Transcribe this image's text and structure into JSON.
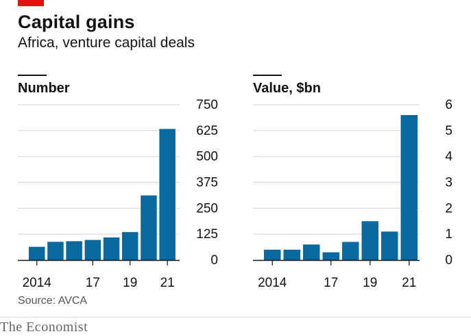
{
  "header": {
    "title": "Capital gains",
    "subtitle": "Africa, venture capital deals"
  },
  "footer": {
    "source": "Source: AVCA",
    "brand": "The Economist"
  },
  "colors": {
    "bar": "#0a6aa0",
    "grid": "#d9d9d9",
    "accent": "#e3120b"
  },
  "chart_data": [
    {
      "type": "bar",
      "title": "Number",
      "x": [
        2014,
        2015,
        2016,
        2017,
        2018,
        2019,
        2020,
        2021
      ],
      "x_tick_labels": [
        "2014",
        "17",
        "19",
        "21"
      ],
      "x_tick_positions": [
        2014,
        2017,
        2019,
        2021
      ],
      "values": [
        64,
        88,
        91,
        97,
        109,
        135,
        312,
        633
      ],
      "ylim": [
        0,
        750
      ],
      "y_ticks": [
        0,
        125,
        250,
        375,
        500,
        625,
        750
      ],
      "grid": true
    },
    {
      "type": "bar",
      "title": "Value, $bn",
      "x": [
        2014,
        2015,
        2016,
        2017,
        2018,
        2019,
        2020,
        2021
      ],
      "x_tick_labels": [
        "2014",
        "17",
        "19",
        "21"
      ],
      "x_tick_positions": [
        2014,
        2017,
        2019,
        2021
      ],
      "values": [
        0.4,
        0.4,
        0.6,
        0.3,
        0.7,
        1.5,
        1.1,
        5.6
      ],
      "ylim": [
        0,
        6
      ],
      "y_ticks": [
        0,
        1,
        2,
        3,
        4,
        5,
        6
      ],
      "grid": true
    }
  ]
}
